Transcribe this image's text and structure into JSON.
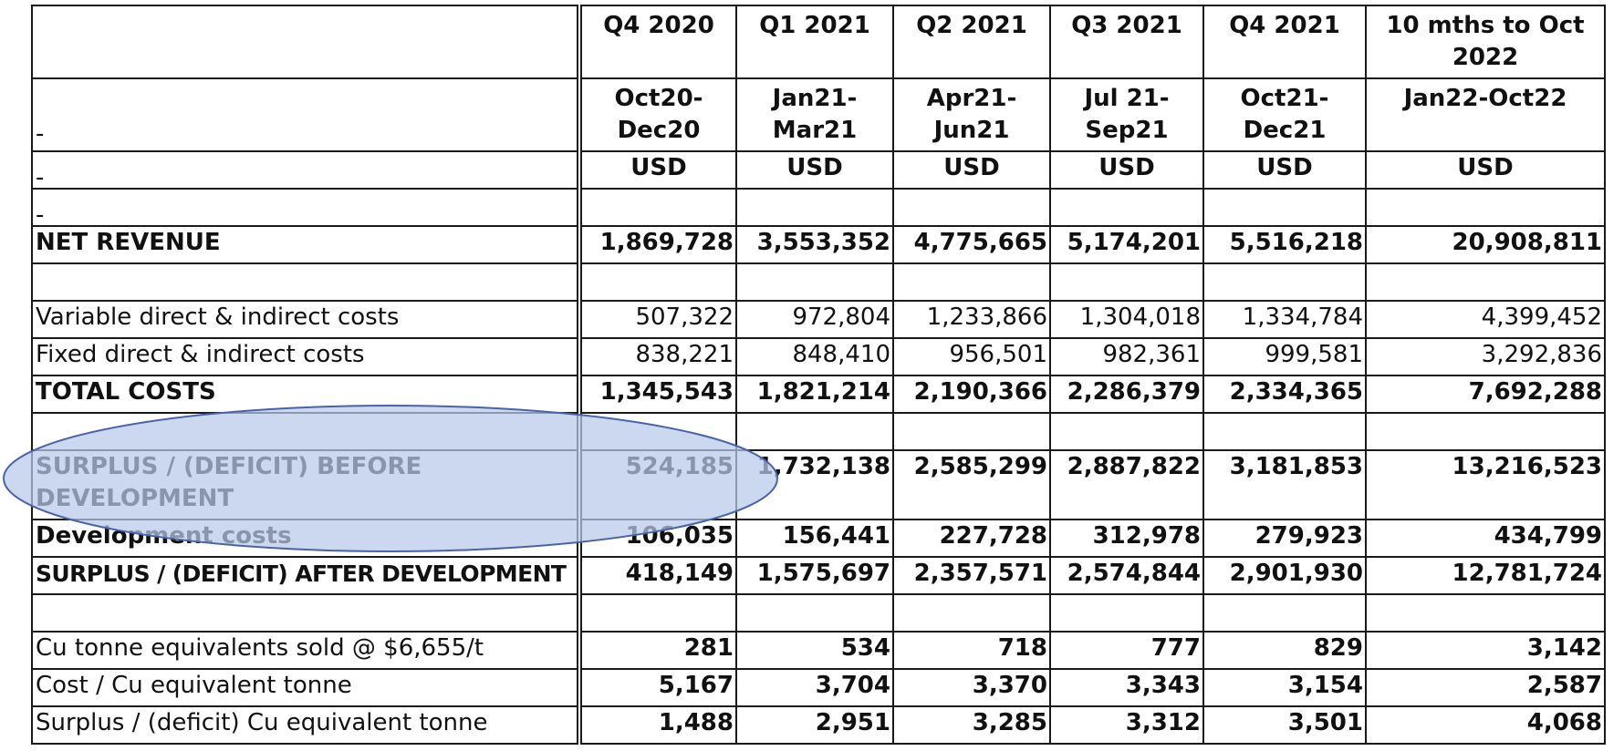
{
  "columns": [
    {
      "quarter": "Q4 2020",
      "period": "Oct20-\nDec20",
      "currency": "USD"
    },
    {
      "quarter": "Q1 2021",
      "period": "Jan21-\nMar21",
      "currency": "USD"
    },
    {
      "quarter": "Q2 2021",
      "period": "Apr21-\nJun21",
      "currency": "USD"
    },
    {
      "quarter": "Q3 2021",
      "period": "Jul 21-\nSep21",
      "currency": "USD"
    },
    {
      "quarter": "Q4 2021",
      "period": "Oct21-\nDec21",
      "currency": "USD"
    },
    {
      "quarter": "10 mths to Oct 2022",
      "period": "Jan22-Oct22",
      "currency": "USD"
    }
  ],
  "stray_marks": {
    "period_row": "-",
    "usd_row": "-",
    "empty_row": "-"
  },
  "rows": {
    "net_revenue": {
      "label": "NET REVENUE",
      "values": [
        "1,869,728",
        "3,553,352",
        "4,775,665",
        "5,174,201",
        "5,516,218",
        "20,908,811"
      ]
    },
    "variable_costs": {
      "label": "Variable direct & indirect costs",
      "values": [
        "507,322",
        "972,804",
        "1,233,866",
        "1,304,018",
        "1,334,784",
        "4,399,452"
      ]
    },
    "fixed_costs": {
      "label": "Fixed direct & indirect costs",
      "values": [
        "838,221",
        "848,410",
        "956,501",
        "982,361",
        "999,581",
        "3,292,836"
      ]
    },
    "total_costs": {
      "label": "TOTAL COSTS",
      "values": [
        "1,345,543",
        "1,821,214",
        "2,190,366",
        "2,286,379",
        "2,334,365",
        "7,692,288"
      ]
    },
    "surplus_before": {
      "label": "SURPLUS / (DEFICIT) BEFORE DEVELOPMENT",
      "values": [
        "524,185",
        "1,732,138",
        "2,585,299",
        "2,887,822",
        "3,181,853",
        "13,216,523"
      ]
    },
    "development_costs": {
      "label": "Development costs",
      "values": [
        "106,035",
        "156,441",
        "227,728",
        "312,978",
        "279,923",
        "434,799"
      ]
    },
    "surplus_after": {
      "label": "SURPLUS / (DEFICIT) AFTER DEVELOPMENT",
      "values": [
        "418,149",
        "1,575,697",
        "2,357,571",
        "2,574,844",
        "2,901,930",
        "12,781,724"
      ]
    },
    "cu_tonnes_sold": {
      "label": "Cu tonne equivalents sold @ $6,655/t",
      "values": [
        "281",
        "534",
        "718",
        "777",
        "829",
        "3,142"
      ]
    },
    "cost_per_tonne": {
      "label": "Cost / Cu equivalent tonne",
      "values": [
        "5,167",
        "3,704",
        "3,370",
        "3,343",
        "3,154",
        "2,587"
      ]
    },
    "surplus_per_tonne": {
      "label": "Surplus / (deficit) Cu equivalent tonne",
      "values": [
        "1,488",
        "2,951",
        "3,285",
        "3,312",
        "3,501",
        "4,068"
      ]
    }
  },
  "highlight": {
    "color": "#b8c8ea",
    "stroke": "#4a63a8"
  }
}
